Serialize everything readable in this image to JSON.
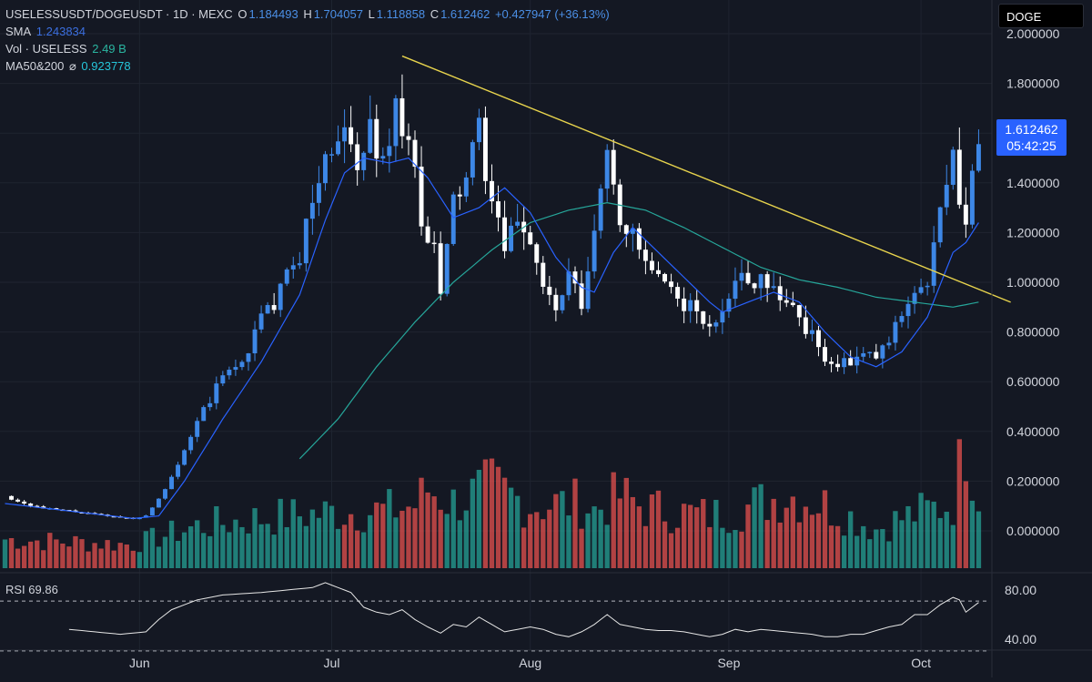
{
  "header": {
    "symbol": "USELESSUSDT/DOGEUSDT · 1D · MEXC",
    "o_label": "O",
    "o_value": "1.184493",
    "h_label": "H",
    "h_value": "1.704057",
    "l_label": "L",
    "l_value": "1.118858",
    "c_label": "C",
    "c_value": "1.612462",
    "change": "+0.427947 (+36.13%)",
    "sma_label": "SMA",
    "sma_value": "1.243834",
    "vol_label": "Vol · USELESS",
    "vol_value": "2.49 B",
    "ma_label": "MA50&200",
    "ma_symbol": "⌀",
    "ma_value": "0.923778",
    "symbol_badge": "DOGE"
  },
  "last_price": {
    "value": "1.612462",
    "countdown": "05:42:25"
  },
  "rsi": {
    "label": "RSI",
    "value": "69.86",
    "levels": [
      70,
      30
    ],
    "ticks": [
      "80.00",
      "40.00"
    ]
  },
  "colors": {
    "background": "#141823",
    "up": "#3d87e6",
    "down": "#ffffff",
    "vol_up": "#26a69a",
    "vol_down": "#ef5350",
    "sma": "#2962ff",
    "ma": "#26a69a",
    "trendline": "#e8d44d",
    "rsi": "#e6e6e6",
    "tag": "#2962ff"
  },
  "chart_data": [
    {
      "type": "candlestick",
      "title": "USELESSUSDT/DOGEUSDT · 1D · MEXC",
      "y_ticks": [
        "2.000000",
        "1.800000",
        "1.600000",
        "1.400000",
        "1.200000",
        "1.000000",
        "0.800000",
        "0.600000",
        "0.400000",
        "0.200000",
        "0.000000"
      ],
      "y_range": [
        -0.12,
        2.0
      ],
      "x_ticks": [
        {
          "label": "Jun",
          "day": 21
        },
        {
          "label": "Jul",
          "day": 51
        },
        {
          "label": "Aug",
          "day": 82
        },
        {
          "label": "Sep",
          "day": 113
        },
        {
          "label": "Oct",
          "day": 143
        }
      ],
      "days": 154,
      "close_path": [
        [
          0,
          0.14
        ],
        [
          3,
          0.11
        ],
        [
          6,
          0.09
        ],
        [
          10,
          0.08
        ],
        [
          16,
          0.06
        ],
        [
          20,
          0.05
        ],
        [
          22,
          0.06
        ],
        [
          25,
          0.17
        ],
        [
          28,
          0.33
        ],
        [
          31,
          0.48
        ],
        [
          34,
          0.62
        ],
        [
          37,
          0.68
        ],
        [
          40,
          0.85
        ],
        [
          43,
          0.96
        ],
        [
          46,
          1.12
        ],
        [
          49,
          1.42
        ],
        [
          52,
          1.62
        ],
        [
          53,
          1.58
        ],
        [
          55,
          1.44
        ],
        [
          57,
          1.62
        ],
        [
          59,
          1.48
        ],
        [
          61,
          1.7
        ],
        [
          63,
          1.6
        ],
        [
          65,
          1.22
        ],
        [
          67,
          1.12
        ],
        [
          68,
          0.95
        ],
        [
          70,
          1.32
        ],
        [
          72,
          1.42
        ],
        [
          74,
          1.6
        ],
        [
          76,
          1.32
        ],
        [
          78,
          1.12
        ],
        [
          80,
          1.26
        ],
        [
          82,
          1.18
        ],
        [
          84,
          0.98
        ],
        [
          86,
          0.88
        ],
        [
          88,
          1.02
        ],
        [
          90,
          0.9
        ],
        [
          92,
          1.18
        ],
        [
          94,
          1.56
        ],
        [
          96,
          1.26
        ],
        [
          98,
          1.18
        ],
        [
          100,
          1.07
        ],
        [
          102,
          1.0
        ],
        [
          104,
          0.95
        ],
        [
          106,
          0.92
        ],
        [
          108,
          0.88
        ],
        [
          110,
          0.8
        ],
        [
          112,
          0.9
        ],
        [
          114,
          1.04
        ],
        [
          116,
          0.98
        ],
        [
          118,
          1.04
        ],
        [
          120,
          0.98
        ],
        [
          122,
          0.92
        ],
        [
          124,
          0.86
        ],
        [
          126,
          0.78
        ],
        [
          128,
          0.7
        ],
        [
          130,
          0.66
        ],
        [
          132,
          0.68
        ],
        [
          134,
          0.7
        ],
        [
          136,
          0.7
        ],
        [
          138,
          0.76
        ],
        [
          140,
          0.88
        ],
        [
          142,
          0.98
        ],
        [
          144,
          0.98
        ],
        [
          146,
          1.28
        ],
        [
          148,
          1.48
        ],
        [
          150,
          1.22
        ],
        [
          152,
          1.612
        ]
      ],
      "sma_path": [
        [
          0,
          0.11
        ],
        [
          20,
          0.05
        ],
        [
          24,
          0.06
        ],
        [
          28,
          0.2
        ],
        [
          34,
          0.45
        ],
        [
          40,
          0.68
        ],
        [
          46,
          0.95
        ],
        [
          50,
          1.25
        ],
        [
          53,
          1.44
        ],
        [
          56,
          1.5
        ],
        [
          60,
          1.48
        ],
        [
          63,
          1.5
        ],
        [
          66,
          1.42
        ],
        [
          70,
          1.26
        ],
        [
          74,
          1.3
        ],
        [
          78,
          1.38
        ],
        [
          82,
          1.28
        ],
        [
          86,
          1.1
        ],
        [
          90,
          0.98
        ],
        [
          92,
          0.96
        ],
        [
          95,
          1.12
        ],
        [
          98,
          1.22
        ],
        [
          102,
          1.12
        ],
        [
          106,
          1.02
        ],
        [
          110,
          0.92
        ],
        [
          112,
          0.88
        ],
        [
          116,
          0.92
        ],
        [
          120,
          0.96
        ],
        [
          124,
          0.92
        ],
        [
          128,
          0.8
        ],
        [
          132,
          0.7
        ],
        [
          136,
          0.66
        ],
        [
          140,
          0.72
        ],
        [
          144,
          0.86
        ],
        [
          148,
          1.12
        ],
        [
          150,
          1.16
        ],
        [
          152,
          1.24
        ]
      ],
      "ma_path": [
        [
          46,
          0.29
        ],
        [
          52,
          0.45
        ],
        [
          58,
          0.66
        ],
        [
          64,
          0.84
        ],
        [
          70,
          1.0
        ],
        [
          76,
          1.13
        ],
        [
          82,
          1.24
        ],
        [
          88,
          1.29
        ],
        [
          94,
          1.32
        ],
        [
          100,
          1.29
        ],
        [
          106,
          1.22
        ],
        [
          112,
          1.14
        ],
        [
          118,
          1.06
        ],
        [
          124,
          1.01
        ],
        [
          130,
          0.98
        ],
        [
          136,
          0.94
        ],
        [
          142,
          0.92
        ],
        [
          148,
          0.9
        ],
        [
          152,
          0.92
        ]
      ],
      "trendline": [
        [
          62,
          1.91
        ],
        [
          157,
          0.92
        ]
      ],
      "volume_scale_max": 2.49,
      "volume_profile": [
        [
          0,
          0.22
        ],
        [
          20,
          0.18
        ],
        [
          30,
          0.32
        ],
        [
          40,
          0.38
        ],
        [
          50,
          0.42
        ],
        [
          60,
          0.44
        ],
        [
          64,
          0.48
        ],
        [
          66,
          0.6
        ],
        [
          70,
          0.5
        ],
        [
          76,
          0.62
        ],
        [
          82,
          0.48
        ],
        [
          90,
          0.5
        ],
        [
          92,
          0.44
        ],
        [
          96,
          0.55
        ],
        [
          100,
          0.46
        ],
        [
          106,
          0.42
        ],
        [
          110,
          0.4
        ],
        [
          114,
          0.44
        ],
        [
          118,
          0.5
        ],
        [
          122,
          0.56
        ],
        [
          126,
          0.52
        ],
        [
          130,
          0.44
        ],
        [
          136,
          0.3
        ],
        [
          140,
          0.38
        ],
        [
          144,
          0.44
        ],
        [
          148,
          0.5
        ],
        [
          150,
          1.0
        ],
        [
          152,
          0.58
        ]
      ],
      "rsi_path": [
        [
          10,
          48
        ],
        [
          14,
          46
        ],
        [
          18,
          44
        ],
        [
          22,
          46
        ],
        [
          24,
          56
        ],
        [
          26,
          64
        ],
        [
          30,
          72
        ],
        [
          34,
          76
        ],
        [
          40,
          78
        ],
        [
          44,
          80
        ],
        [
          48,
          82
        ],
        [
          50,
          86
        ],
        [
          52,
          82
        ],
        [
          54,
          78
        ],
        [
          56,
          66
        ],
        [
          58,
          62
        ],
        [
          60,
          60
        ],
        [
          62,
          64
        ],
        [
          64,
          56
        ],
        [
          66,
          50
        ],
        [
          68,
          45
        ],
        [
          70,
          52
        ],
        [
          72,
          50
        ],
        [
          74,
          58
        ],
        [
          76,
          52
        ],
        [
          78,
          46
        ],
        [
          80,
          48
        ],
        [
          82,
          50
        ],
        [
          84,
          48
        ],
        [
          86,
          44
        ],
        [
          88,
          42
        ],
        [
          90,
          46
        ],
        [
          92,
          52
        ],
        [
          94,
          60
        ],
        [
          96,
          52
        ],
        [
          98,
          50
        ],
        [
          100,
          48
        ],
        [
          102,
          47
        ],
        [
          104,
          47
        ],
        [
          106,
          46
        ],
        [
          108,
          44
        ],
        [
          110,
          42
        ],
        [
          112,
          44
        ],
        [
          114,
          48
        ],
        [
          116,
          46
        ],
        [
          118,
          48
        ],
        [
          120,
          47
        ],
        [
          122,
          46
        ],
        [
          124,
          45
        ],
        [
          126,
          44
        ],
        [
          128,
          42
        ],
        [
          130,
          42
        ],
        [
          132,
          44
        ],
        [
          134,
          44
        ],
        [
          136,
          47
        ],
        [
          138,
          50
        ],
        [
          140,
          52
        ],
        [
          142,
          60
        ],
        [
          144,
          60
        ],
        [
          146,
          68
        ],
        [
          148,
          74
        ],
        [
          149,
          72
        ],
        [
          150,
          62
        ],
        [
          152,
          69.86
        ]
      ]
    }
  ]
}
